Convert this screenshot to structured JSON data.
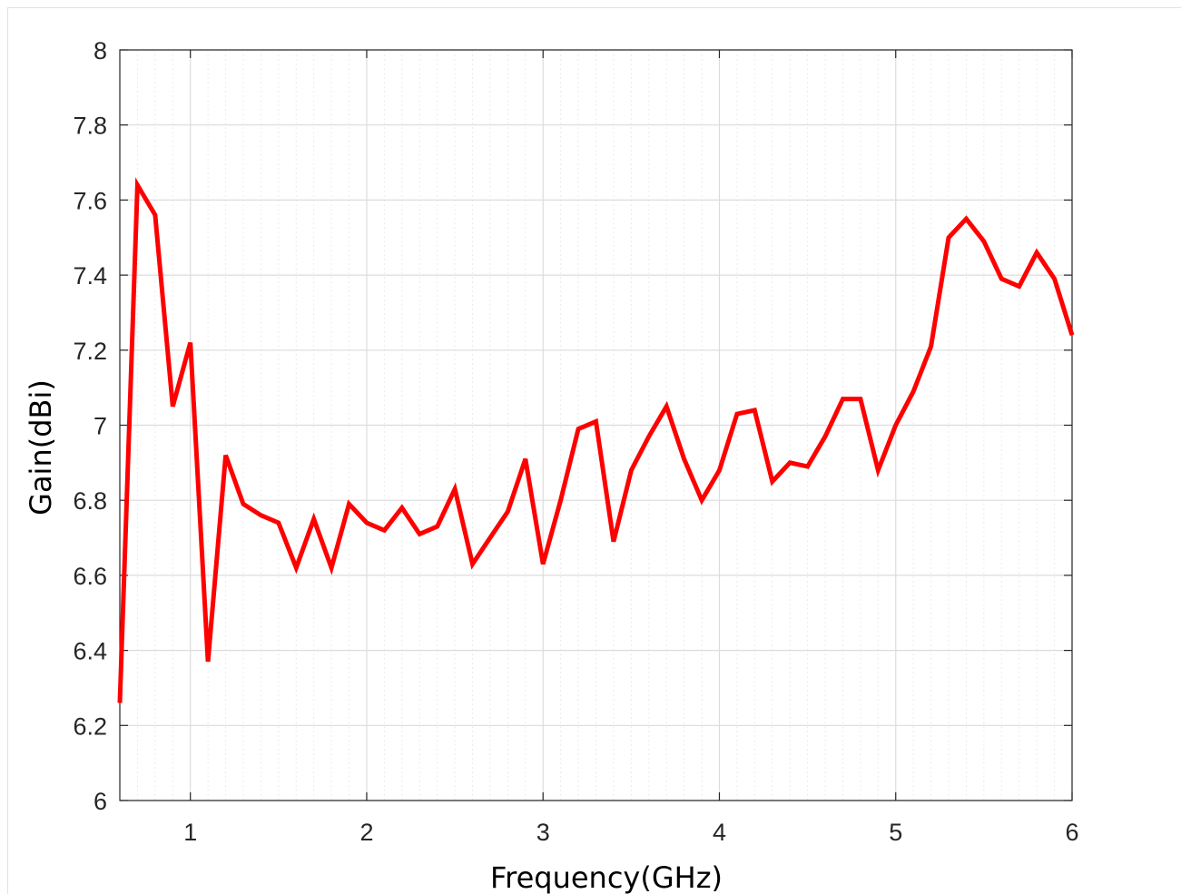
{
  "chart_data": {
    "type": "line",
    "title": "",
    "xlabel": "Frequency(GHz)",
    "ylabel": "Gain(dBi)",
    "xlim": [
      0.6,
      6
    ],
    "ylim": [
      6,
      8
    ],
    "xticks": [
      1,
      2,
      3,
      4,
      5,
      6
    ],
    "xtick_labels": [
      "1",
      "2",
      "3",
      "4",
      "5",
      "6"
    ],
    "yticks": [
      6,
      6.2,
      6.4,
      6.6,
      6.8,
      7,
      7.2,
      7.4,
      7.6,
      7.8,
      8
    ],
    "ytick_labels": [
      "6",
      "6.2",
      "6.4",
      "6.6",
      "6.8",
      "7",
      "7.2",
      "7.4",
      "7.6",
      "7.8",
      "8"
    ],
    "grid": true,
    "minor_grid": true,
    "legend": "none",
    "colors": {
      "line": "#ff0000",
      "grid_major": "#dcdcdc",
      "grid_minor": "#ececec",
      "axes": "#262626"
    },
    "series": [
      {
        "x": [
          0.6,
          0.7,
          0.8,
          0.9,
          1.0,
          1.1,
          1.2,
          1.3,
          1.4,
          1.5,
          1.6,
          1.7,
          1.8,
          1.9,
          2.0,
          2.1,
          2.2,
          2.3,
          2.4,
          2.5,
          2.6,
          2.7,
          2.8,
          2.9,
          3.0,
          3.1,
          3.2,
          3.3,
          3.4,
          3.5,
          3.6,
          3.7,
          3.8,
          3.9,
          4.0,
          4.1,
          4.2,
          4.3,
          4.4,
          4.5,
          4.6,
          4.7,
          4.8,
          4.9,
          5.0,
          5.1,
          5.2,
          5.3,
          5.4,
          5.5,
          5.6,
          5.7,
          5.8,
          5.9,
          6.0
        ],
        "values": [
          6.26,
          7.64,
          7.56,
          7.05,
          7.22,
          6.37,
          6.92,
          6.79,
          6.76,
          6.74,
          6.62,
          6.75,
          6.62,
          6.79,
          6.74,
          6.72,
          6.78,
          6.71,
          6.73,
          6.83,
          6.63,
          6.7,
          6.77,
          6.91,
          6.63,
          6.8,
          6.99,
          7.01,
          6.69,
          6.88,
          6.97,
          7.05,
          6.91,
          6.8,
          6.88,
          7.03,
          7.04,
          6.85,
          6.9,
          6.89,
          6.97,
          7.07,
          7.07,
          6.88,
          7.0,
          7.09,
          7.21,
          7.5,
          7.55,
          7.49,
          7.39,
          7.37,
          7.46,
          7.39,
          7.24
        ]
      }
    ]
  }
}
